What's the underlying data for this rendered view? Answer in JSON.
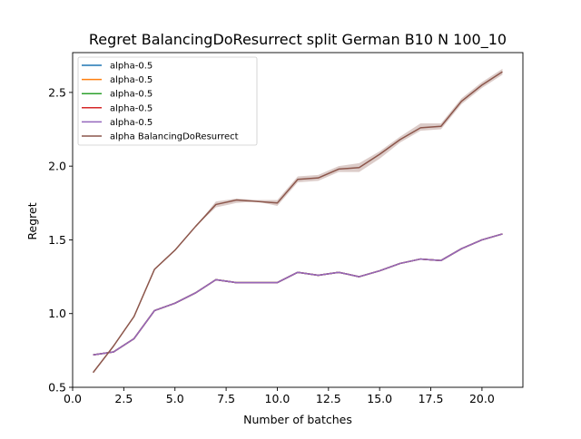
{
  "chart_data": {
    "type": "line",
    "title": "Regret BalancingDoResurrect split German B10 N 100_10",
    "xlabel": "Number of batches",
    "ylabel": "Regret",
    "xlim": [
      0.0,
      22.0
    ],
    "ylim": [
      0.5,
      2.77
    ],
    "xticks": [
      0.0,
      2.5,
      5.0,
      7.5,
      10.0,
      12.5,
      15.0,
      17.5,
      20.0
    ],
    "xtick_labels": [
      "0.0",
      "2.5",
      "5.0",
      "7.5",
      "10.0",
      "12.5",
      "15.0",
      "17.5",
      "20.0"
    ],
    "yticks": [
      0.5,
      1.0,
      1.5,
      2.0,
      2.5
    ],
    "ytick_labels": [
      "0.5",
      "1.0",
      "1.5",
      "2.0",
      "2.5"
    ],
    "grid": false,
    "legend_position": "top-left",
    "x": [
      1,
      2,
      3,
      4,
      5,
      6,
      7,
      8,
      9,
      10,
      11,
      12,
      13,
      14,
      15,
      16,
      17,
      18,
      19,
      20,
      21
    ],
    "series": [
      {
        "name": "alpha-0.5",
        "color": "#1f77b4",
        "values": [
          0.72,
          0.74,
          0.83,
          1.02,
          1.07,
          1.14,
          1.23,
          1.21,
          1.21,
          1.21,
          1.28,
          1.26,
          1.28,
          1.25,
          1.29,
          1.34,
          1.37,
          1.36,
          1.44,
          1.5,
          1.54
        ]
      },
      {
        "name": "alpha-0.5",
        "color": "#ff7f0e",
        "values": [
          0.72,
          0.74,
          0.83,
          1.02,
          1.07,
          1.14,
          1.23,
          1.21,
          1.21,
          1.21,
          1.28,
          1.26,
          1.28,
          1.25,
          1.29,
          1.34,
          1.37,
          1.36,
          1.44,
          1.5,
          1.54
        ]
      },
      {
        "name": "alpha-0.5",
        "color": "#2ca02c",
        "values": [
          0.72,
          0.74,
          0.83,
          1.02,
          1.07,
          1.14,
          1.23,
          1.21,
          1.21,
          1.21,
          1.28,
          1.26,
          1.28,
          1.25,
          1.29,
          1.34,
          1.37,
          1.36,
          1.44,
          1.5,
          1.54
        ]
      },
      {
        "name": "alpha-0.5",
        "color": "#d62728",
        "values": [
          0.72,
          0.74,
          0.83,
          1.02,
          1.07,
          1.14,
          1.23,
          1.21,
          1.21,
          1.21,
          1.28,
          1.26,
          1.28,
          1.25,
          1.29,
          1.34,
          1.37,
          1.36,
          1.44,
          1.5,
          1.54
        ]
      },
      {
        "name": "alpha-0.5",
        "color": "#9467bd",
        "values": [
          0.72,
          0.74,
          0.83,
          1.02,
          1.07,
          1.14,
          1.23,
          1.21,
          1.21,
          1.21,
          1.28,
          1.26,
          1.28,
          1.25,
          1.29,
          1.34,
          1.37,
          1.36,
          1.44,
          1.5,
          1.54
        ]
      },
      {
        "name": "alpha BalancingDoResurrect",
        "color": "#8c564b",
        "band_color": "#8c564b",
        "values": [
          0.6,
          0.78,
          0.98,
          1.3,
          1.43,
          1.59,
          1.74,
          1.77,
          1.76,
          1.75,
          1.91,
          1.92,
          1.98,
          1.99,
          2.08,
          2.18,
          2.26,
          2.27,
          2.44,
          2.55,
          2.64
        ],
        "band_lower": [
          0.6,
          0.78,
          0.98,
          1.3,
          1.43,
          1.59,
          1.72,
          1.75,
          1.76,
          1.73,
          1.89,
          1.9,
          1.96,
          1.96,
          2.05,
          2.16,
          2.24,
          2.25,
          2.42,
          2.53,
          2.62
        ],
        "band_upper": [
          0.6,
          0.78,
          0.98,
          1.3,
          1.43,
          1.59,
          1.76,
          1.78,
          1.77,
          1.77,
          1.93,
          1.94,
          2.0,
          2.02,
          2.1,
          2.2,
          2.29,
          2.29,
          2.46,
          2.57,
          2.66
        ]
      }
    ]
  }
}
